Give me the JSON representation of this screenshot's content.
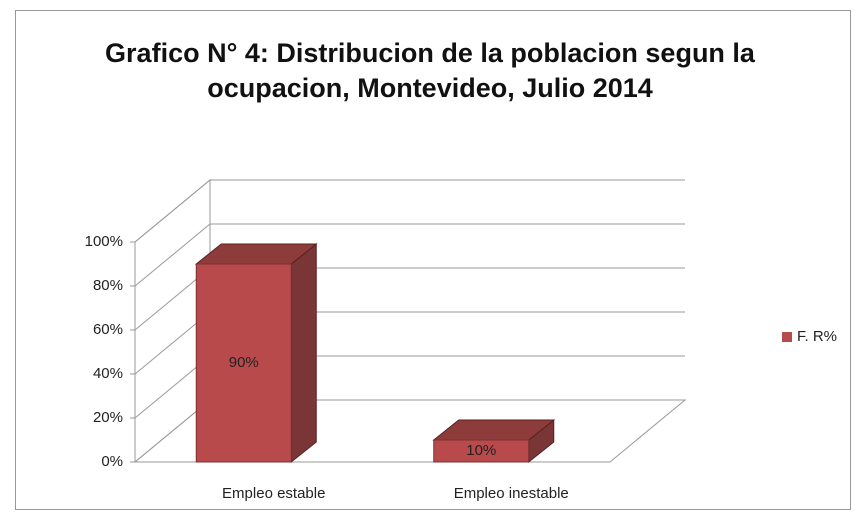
{
  "chart_data": {
    "type": "bar3d",
    "title": "Grafico N° 4: Distribucion de la poblacion segun  la ocupacion, Montevideo, Julio 2014",
    "categories": [
      "Empleo estable",
      "Empleo inestable"
    ],
    "series": [
      {
        "name": "F. R%",
        "color": "#b94a4c",
        "values": [
          90,
          10
        ],
        "value_labels": [
          "90%",
          "10%"
        ]
      }
    ],
    "ylim": [
      0,
      100
    ],
    "yticks": [
      {
        "value": 0,
        "label": "0%"
      },
      {
        "value": 20,
        "label": "20%"
      },
      {
        "value": 40,
        "label": "40%"
      },
      {
        "value": 60,
        "label": "60%"
      },
      {
        "value": 80,
        "label": "80%"
      },
      {
        "value": 100,
        "label": "100%"
      }
    ],
    "grid": true,
    "legend": "right"
  }
}
